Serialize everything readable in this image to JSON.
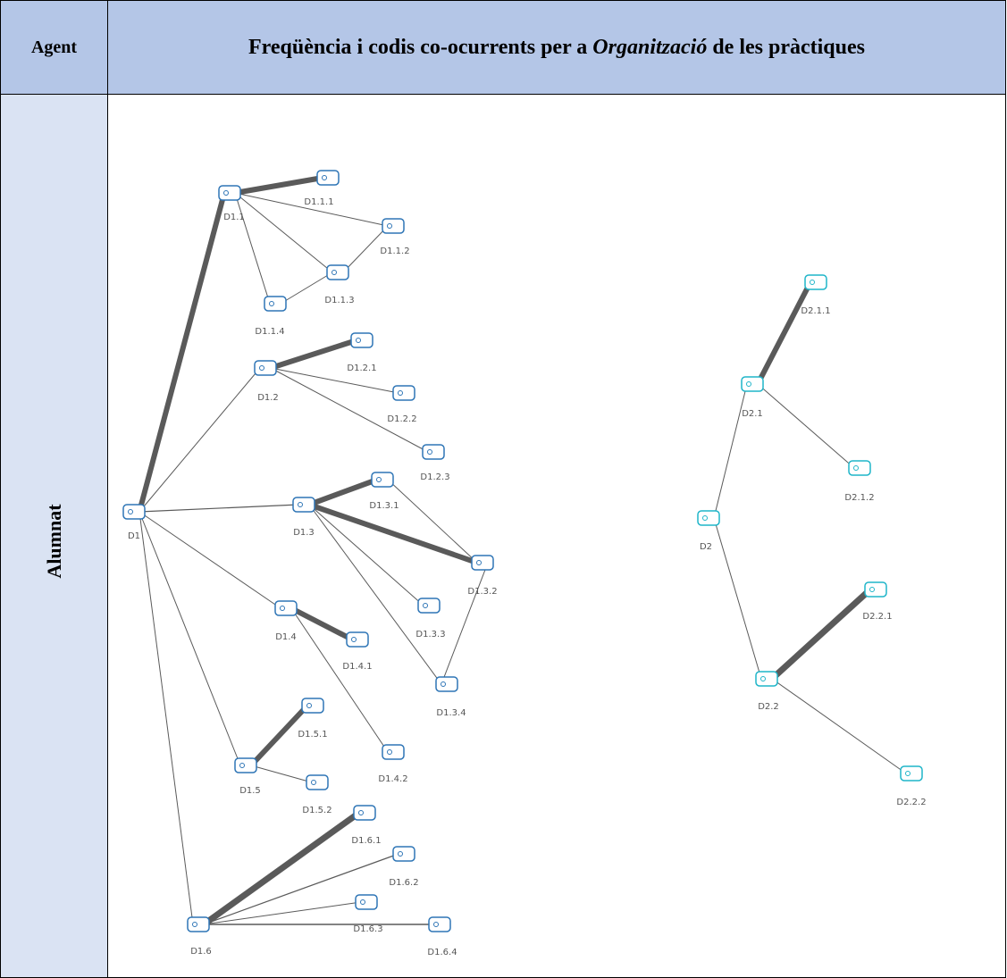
{
  "header": {
    "agent": "Agent",
    "title_before": "Freqüència i codis co-ocurrents per a",
    "title_italic": "Organització",
    "title_after": "de les pràctiques"
  },
  "row": {
    "agent": "Alumnat"
  },
  "nodes": [
    {
      "label": "D1"
    },
    {
      "label": "D1.1"
    },
    {
      "label": "D1.1.1"
    },
    {
      "label": "D1.1.2"
    },
    {
      "label": "D1.1.3"
    },
    {
      "label": "D1.1.4"
    },
    {
      "label": "D1.2"
    },
    {
      "label": "D1.2.1"
    },
    {
      "label": "D1.2.2"
    },
    {
      "label": "D1.2.3"
    },
    {
      "label": "D1.3"
    },
    {
      "label": "D1.3.1"
    },
    {
      "label": "D1.3.2"
    },
    {
      "label": "D1.3.3"
    },
    {
      "label": "D1.3.4"
    },
    {
      "label": "D1.4"
    },
    {
      "label": "D1.4.1"
    },
    {
      "label": "D1.4.2"
    },
    {
      "label": "D1.5"
    },
    {
      "label": "D1.5.1"
    },
    {
      "label": "D1.5.2"
    },
    {
      "label": "D1.6"
    },
    {
      "label": "D1.6.1"
    },
    {
      "label": "D1.6.2"
    },
    {
      "label": "D1.6.3"
    },
    {
      "label": "D1.6.4"
    },
    {
      "label": "D2"
    },
    {
      "label": "D2.1"
    },
    {
      "label": "D2.1.1"
    },
    {
      "label": "D2.1.2"
    },
    {
      "label": "D2.2"
    },
    {
      "label": "D2.2.1"
    },
    {
      "label": "D2.2.2"
    }
  ]
}
